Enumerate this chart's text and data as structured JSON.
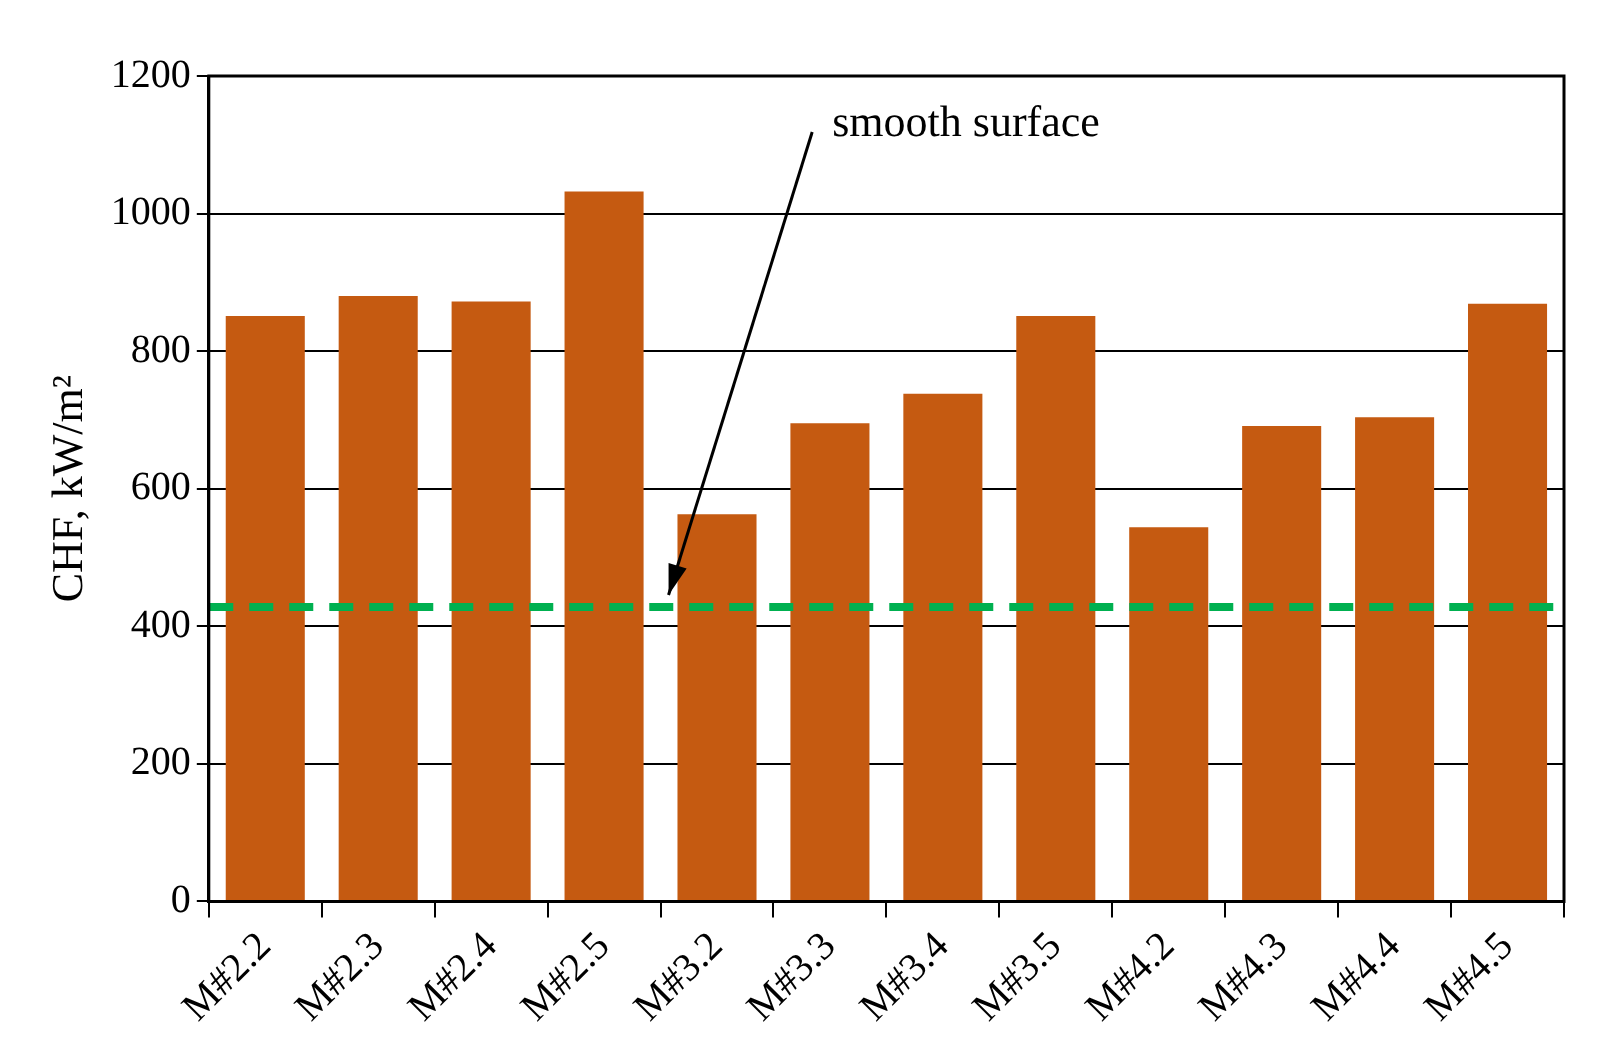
{
  "chart_data": {
    "type": "bar",
    "ylabel": "CHF, kW/m²",
    "categories": [
      "M#2.2",
      "M#2.3",
      "M#2.4",
      "M#2.5",
      "M#3.2",
      "M#3.3",
      "M#3.4",
      "M#3.5",
      "M#4.2",
      "M#4.3",
      "M#4.4",
      "M#4.5"
    ],
    "values": [
      851,
      880,
      872,
      1032,
      563,
      695,
      738,
      851,
      544,
      691,
      704,
      869
    ],
    "color": "#c55a11",
    "ylim": [
      0,
      1200
    ],
    "yticks": [
      0,
      200,
      400,
      600,
      800,
      1000,
      1200
    ],
    "grid": "y",
    "ref_lines": [
      {
        "axis": "y",
        "value": 428,
        "label": "smooth surface",
        "color": "#00b050",
        "line_style": "dashed"
      }
    ]
  }
}
